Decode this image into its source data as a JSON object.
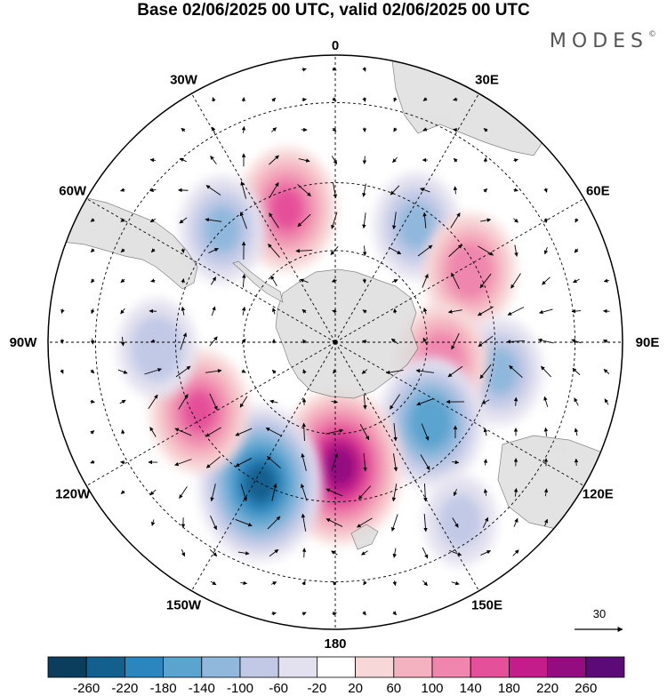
{
  "header": {
    "title": "Base 02/06/2025 00 UTC, valid 02/06/2025 00 UTC",
    "brand": "MODES",
    "brand_mark": "©"
  },
  "map": {
    "projection": "south-polar-stereographic",
    "longitude_labels": [
      {
        "text": "0",
        "lon": 0
      },
      {
        "text": "30E",
        "lon": 30
      },
      {
        "text": "60E",
        "lon": 60
      },
      {
        "text": "90E",
        "lon": 90
      },
      {
        "text": "120E",
        "lon": 120
      },
      {
        "text": "150E",
        "lon": 150
      },
      {
        "text": "180",
        "lon": 180
      },
      {
        "text": "150W",
        "lon": -150
      },
      {
        "text": "120W",
        "lon": -120
      },
      {
        "text": "90W",
        "lon": -90
      },
      {
        "text": "60W",
        "lon": -60
      },
      {
        "text": "30W",
        "lon": -30
      }
    ],
    "reference_vector_label": "30",
    "land_color": "#dcdcdc",
    "anomalies": [
      {
        "kind": "positive",
        "value": 140,
        "lon": -20,
        "lat": -45
      },
      {
        "kind": "negative",
        "value": -100,
        "lon": -45,
        "lat": -40
      },
      {
        "kind": "negative",
        "value": -100,
        "lon": 35,
        "lat": -45
      },
      {
        "kind": "positive",
        "value": 120,
        "lon": 62,
        "lat": -42
      },
      {
        "kind": "negative",
        "value": -100,
        "lon": 100,
        "lat": -38
      },
      {
        "kind": "positive",
        "value": 120,
        "lon": 100,
        "lat": -55
      },
      {
        "kind": "negative",
        "value": -160,
        "lon": 130,
        "lat": -50
      },
      {
        "kind": "positive",
        "value": 220,
        "lon": 178,
        "lat": -50
      },
      {
        "kind": "negative",
        "value": -220,
        "lon": -152,
        "lat": -40
      },
      {
        "kind": "positive",
        "value": 140,
        "lon": -117,
        "lat": -42
      },
      {
        "kind": "negative",
        "value": -80,
        "lon": -92,
        "lat": -35
      },
      {
        "kind": "negative",
        "value": -60,
        "lon": 145,
        "lat": -25
      }
    ]
  },
  "colorbar": {
    "colors": [
      "#0b3d5c",
      "#135f8e",
      "#2a86bd",
      "#5aa4cf",
      "#8fb8dc",
      "#c1c9e6",
      "#e3e1ef",
      "#ffffff",
      "#f7d7d7",
      "#f4b1bf",
      "#ef86ad",
      "#e5509a",
      "#c41c8a",
      "#930d81",
      "#5b0a78"
    ],
    "labels": [
      "-260",
      "-220",
      "-180",
      "-140",
      "-100",
      "-60",
      "-20",
      "20",
      "60",
      "100",
      "140",
      "180",
      "220",
      "260"
    ]
  }
}
